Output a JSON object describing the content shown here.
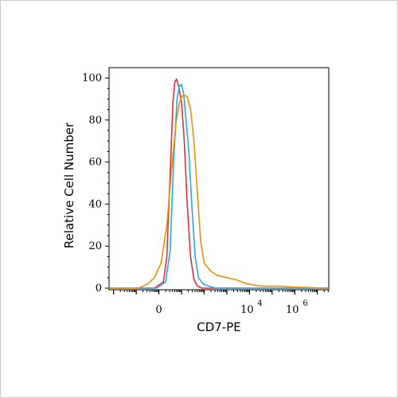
{
  "chart_data": {
    "type": "line",
    "title": "",
    "xlabel": "CD7-PE",
    "ylabel": "Relative Cell Number",
    "ylim": [
      0,
      100
    ],
    "xlim_decades": [
      -2.2,
      7.5
    ],
    "x_scale": "biexponential",
    "grid": false,
    "y_ticks": [
      0,
      20,
      40,
      60,
      80,
      100
    ],
    "x_tick_labels": [
      {
        "base": "0",
        "exp": "",
        "decade": 0
      },
      {
        "base": "10",
        "exp": "4",
        "decade": 4
      },
      {
        "base": "10",
        "exp": "6",
        "decade": 6
      }
    ],
    "series": [
      {
        "color": "#e0303a",
        "x": [
          -2.2,
          -0.2,
          0.2,
          0.35,
          0.5,
          0.62,
          0.7,
          0.78,
          0.88,
          1.0,
          1.12,
          1.25,
          1.4,
          1.55,
          1.7,
          1.9,
          2.2,
          7.5
        ],
        "y": [
          0,
          0,
          3,
          15,
          55,
          88,
          98,
          99.5,
          96,
          88,
          70,
          40,
          15,
          4,
          1,
          0,
          0,
          0
        ]
      },
      {
        "color": "#2aa8e0",
        "x": [
          -2.2,
          -0.1,
          0.3,
          0.5,
          0.65,
          0.8,
          0.9,
          1.0,
          1.1,
          1.2,
          1.32,
          1.45,
          1.6,
          1.75,
          1.95,
          2.2,
          2.5,
          7.5
        ],
        "y": [
          0,
          0,
          3,
          18,
          60,
          90,
          96,
          97,
          92,
          80,
          65,
          40,
          15,
          5,
          2,
          1,
          0,
          0
        ]
      },
      {
        "color": "#e8900a",
        "x": [
          -2.2,
          -0.9,
          -0.5,
          -0.2,
          0.1,
          0.35,
          0.55,
          0.75,
          0.9,
          1.0,
          1.1,
          1.25,
          1.4,
          1.55,
          1.7,
          1.85,
          2.0,
          2.3,
          2.6,
          3.0,
          3.4,
          3.9,
          4.5,
          5.3,
          6.0,
          7.5
        ],
        "y": [
          0,
          0,
          2,
          5,
          12,
          30,
          55,
          78,
          88,
          91,
          92,
          91,
          85,
          70,
          45,
          22,
          12,
          8,
          6,
          5,
          4,
          2,
          1,
          1,
          0.5,
          0
        ]
      }
    ]
  }
}
